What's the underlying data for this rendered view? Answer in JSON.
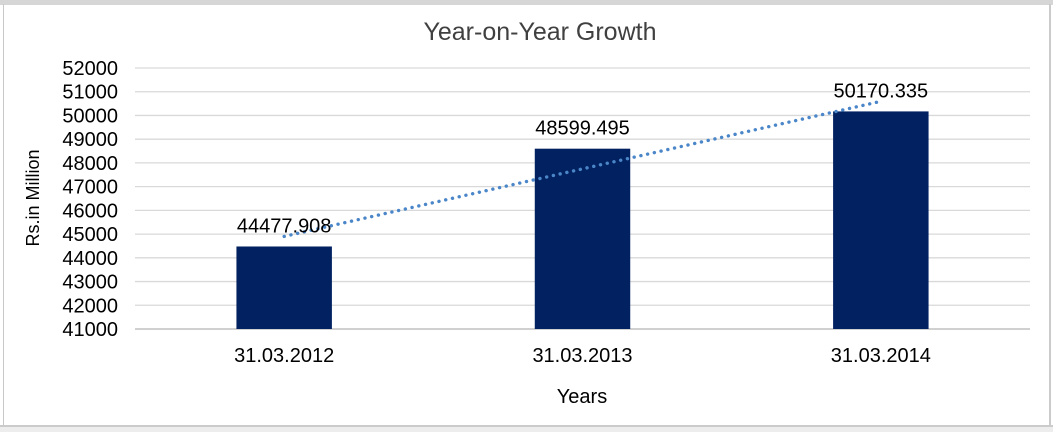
{
  "chart_data": {
    "type": "bar",
    "title": "Year-on-Year Growth",
    "xlabel": "Years",
    "ylabel": "Rs.in Million",
    "categories": [
      "31.03.2012",
      "31.03.2013",
      "31.03.2014"
    ],
    "values": [
      44477.908,
      48599.495,
      50170.335
    ],
    "data_labels": [
      "44477.908",
      "48599.495",
      "50170.335"
    ],
    "ylim": [
      41000,
      52000
    ],
    "ytick_step": 1000,
    "ytick_labels": [
      "52000",
      "51000",
      "50000",
      "49000",
      "48000",
      "47000",
      "46000",
      "45000",
      "44000",
      "43000",
      "42000",
      "41000"
    ],
    "grid": "horizontal",
    "legend": "none",
    "trendline": {
      "type": "linear",
      "style": "dotted"
    },
    "colors": {
      "bar": "#022160",
      "trendline": "#4a86c8",
      "gridline": "#d9d9d9",
      "axis_line": "#c0c0c0",
      "title": "#404040",
      "tick_label": "#000000",
      "data_label": "#000000",
      "frame_border": "#cbcbcb",
      "background": "#ffffff"
    }
  }
}
